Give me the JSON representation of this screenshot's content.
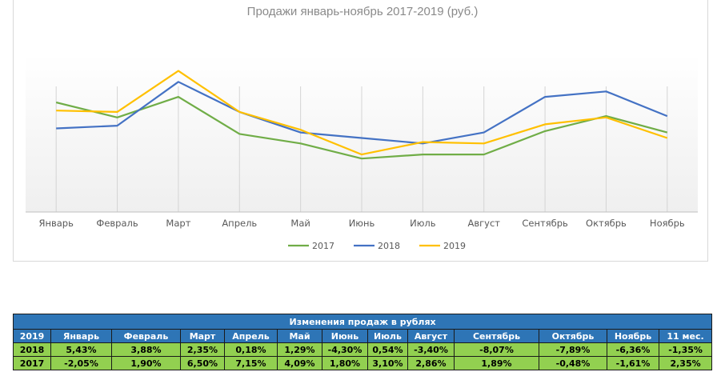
{
  "chart_data": {
    "type": "line",
    "title": "Продажи январь-ноябрь 2017-2019 (руб.)",
    "categories": [
      "Январь",
      "Февраль",
      "Март",
      "Апрель",
      "Май",
      "Июнь",
      "Июль",
      "Август",
      "Сентябрь",
      "Октябрь",
      "Ноябрь"
    ],
    "series": [
      {
        "name": "2017",
        "color": "#70ad47",
        "values": [
          80,
          69,
          84,
          57,
          50,
          39,
          42,
          42,
          59,
          70,
          58
        ]
      },
      {
        "name": "2018",
        "color": "#4472c4",
        "values": [
          61,
          63,
          95,
          73,
          58,
          54,
          50,
          58,
          84,
          88,
          70
        ]
      },
      {
        "name": "2019",
        "color": "#ffc000",
        "values": [
          74,
          73,
          103,
          73,
          60,
          42,
          51,
          50,
          64,
          69,
          54
        ]
      }
    ],
    "ylim": [
      0,
      115
    ],
    "grid": false,
    "legend": "bottom"
  },
  "table": {
    "title": "Изменения продаж в рублях",
    "header": [
      "2019",
      "Январь",
      "Февраль",
      "Март",
      "Апрель",
      "Май",
      "Июнь",
      "Июль",
      "Август",
      "Сентябрь",
      "Октябрь",
      "Ноябрь",
      "11 мес."
    ],
    "rows": [
      [
        "2018",
        "5,43%",
        "3,88%",
        "2,35%",
        "0,18%",
        "1,29%",
        "-4,30%",
        "0,54%",
        "-3,40%",
        "-8,07%",
        "-7,89%",
        "-6,36%",
        "-1,35%"
      ],
      [
        "2017",
        "-2,05%",
        "1,90%",
        "6,50%",
        "7,15%",
        "4,09%",
        "1,80%",
        "3,10%",
        "2,86%",
        "1,89%",
        "-0,48%",
        "-1,61%",
        "2,35%"
      ]
    ]
  }
}
